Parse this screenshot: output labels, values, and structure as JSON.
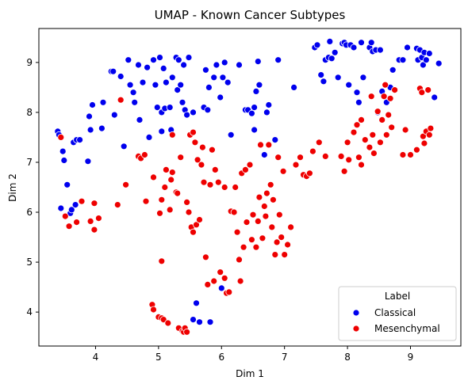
{
  "chart_data": {
    "type": "scatter",
    "title": "UMAP - Known Cancer Subtypes",
    "xlabel": "Dim 1",
    "ylabel": "Dim 2",
    "xlim": [
      3.1,
      9.8
    ],
    "ylim": [
      3.32,
      9.68
    ],
    "xticks": [
      4,
      5,
      6,
      7,
      8,
      9
    ],
    "yticks": [
      4,
      5,
      6,
      7,
      8,
      9
    ],
    "grid": false,
    "legend": {
      "title": "Label",
      "position": "lower-right"
    },
    "series": [
      {
        "name": "Classical",
        "color": "#0000ee",
        "points": [
          [
            3.4,
            7.62
          ],
          [
            3.42,
            7.55
          ],
          [
            3.45,
            6.08
          ],
          [
            3.48,
            7.22
          ],
          [
            3.5,
            7.04
          ],
          [
            3.55,
            6.55
          ],
          [
            3.6,
            5.98
          ],
          [
            3.62,
            6.05
          ],
          [
            3.65,
            7.4
          ],
          [
            3.7,
            7.45
          ],
          [
            3.68,
            6.15
          ],
          [
            3.75,
            7.45
          ],
          [
            3.88,
            7.02
          ],
          [
            3.9,
            7.92
          ],
          [
            3.92,
            7.65
          ],
          [
            3.95,
            8.15
          ],
          [
            4.1,
            7.68
          ],
          [
            4.12,
            8.2
          ],
          [
            4.25,
            8.82
          ],
          [
            4.28,
            8.82
          ],
          [
            4.3,
            7.95
          ],
          [
            4.45,
            7.32
          ],
          [
            4.4,
            8.72
          ],
          [
            4.52,
            9.05
          ],
          [
            4.55,
            8.55
          ],
          [
            4.6,
            8.4
          ],
          [
            4.62,
            8.2
          ],
          [
            4.68,
            8.95
          ],
          [
            4.7,
            7.85
          ],
          [
            4.75,
            8.6
          ],
          [
            4.82,
            8.9
          ],
          [
            4.85,
            7.5
          ],
          [
            4.92,
            9.05
          ],
          [
            4.95,
            8.55
          ],
          [
            4.98,
            8.1
          ],
          [
            5.02,
            9.1
          ],
          [
            5.05,
            8.0
          ],
          [
            5.05,
            7.62
          ],
          [
            5.08,
            8.88
          ],
          [
            5.1,
            8.08
          ],
          [
            5.12,
            8.6
          ],
          [
            5.18,
            8.1
          ],
          [
            5.2,
            7.65
          ],
          [
            5.22,
            8.7
          ],
          [
            5.28,
            9.1
          ],
          [
            5.3,
            8.45
          ],
          [
            5.32,
            9.05
          ],
          [
            5.35,
            8.55
          ],
          [
            5.38,
            8.2
          ],
          [
            5.4,
            8.95
          ],
          [
            5.42,
            8.05
          ],
          [
            5.45,
            7.95
          ],
          [
            5.48,
            9.1
          ],
          [
            5.55,
            8.0
          ],
          [
            5.55,
            3.85
          ],
          [
            5.6,
            4.18
          ],
          [
            5.65,
            3.8
          ],
          [
            5.72,
            8.1
          ],
          [
            5.75,
            8.85
          ],
          [
            5.78,
            8.05
          ],
          [
            5.8,
            8.5
          ],
          [
            5.82,
            3.8
          ],
          [
            5.88,
            8.7
          ],
          [
            5.92,
            8.95
          ],
          [
            5.98,
            8.3
          ],
          [
            6.0,
            4.48
          ],
          [
            6.02,
            8.7
          ],
          [
            6.05,
            9.0
          ],
          [
            6.1,
            8.6
          ],
          [
            6.15,
            7.55
          ],
          [
            6.38,
            8.05
          ],
          [
            6.42,
            8.05
          ],
          [
            6.48,
            7.98
          ],
          [
            6.52,
            8.1
          ],
          [
            6.52,
            7.65
          ],
          [
            6.55,
            8.42
          ],
          [
            6.58,
            9.02
          ],
          [
            6.6,
            8.55
          ],
          [
            6.68,
            7.15
          ],
          [
            6.72,
            8.0
          ],
          [
            6.75,
            8.15
          ],
          [
            6.85,
            7.45
          ],
          [
            6.9,
            9.05
          ],
          [
            7.15,
            8.5
          ],
          [
            7.48,
            9.3
          ],
          [
            7.52,
            9.35
          ],
          [
            7.58,
            8.75
          ],
          [
            7.62,
            8.62
          ],
          [
            7.65,
            9.05
          ],
          [
            7.7,
            9.1
          ],
          [
            7.72,
            9.42
          ],
          [
            7.75,
            9.08
          ],
          [
            7.8,
            9.2
          ],
          [
            7.85,
            8.7
          ],
          [
            7.92,
            9.38
          ],
          [
            7.95,
            9.4
          ],
          [
            7.98,
            9.35
          ],
          [
            8.02,
            8.55
          ],
          [
            8.05,
            9.35
          ],
          [
            8.1,
            9.3
          ],
          [
            8.15,
            8.4
          ],
          [
            8.18,
            8.2
          ],
          [
            8.22,
            9.4
          ],
          [
            8.25,
            8.7
          ],
          [
            8.35,
            9.3
          ],
          [
            8.38,
            9.4
          ],
          [
            8.4,
            9.22
          ],
          [
            8.45,
            9.25
          ],
          [
            8.48,
            8.0
          ],
          [
            8.52,
            9.25
          ],
          [
            8.55,
            8.42
          ],
          [
            8.62,
            8.2
          ],
          [
            8.68,
            8.5
          ],
          [
            8.72,
            8.85
          ],
          [
            8.82,
            9.05
          ],
          [
            8.88,
            9.05
          ],
          [
            8.95,
            9.3
          ],
          [
            9.1,
            9.28
          ],
          [
            9.12,
            9.05
          ],
          [
            9.15,
            9.25
          ],
          [
            9.18,
            9.1
          ],
          [
            9.2,
            8.95
          ],
          [
            9.22,
            9.2
          ],
          [
            9.25,
            9.05
          ],
          [
            9.3,
            9.18
          ],
          [
            9.38,
            8.3
          ],
          [
            9.45,
            8.98
          ],
          [
            6.28,
            8.95
          ]
        ]
      },
      {
        "name": "Mesenchymal",
        "color": "#ee0000",
        "points": [
          [
            3.45,
            7.5
          ],
          [
            3.52,
            5.92
          ],
          [
            3.58,
            5.72
          ],
          [
            3.7,
            5.8
          ],
          [
            3.78,
            6.22
          ],
          [
            3.92,
            5.82
          ],
          [
            3.98,
            5.65
          ],
          [
            3.98,
            6.18
          ],
          [
            4.05,
            5.88
          ],
          [
            4.35,
            6.15
          ],
          [
            4.4,
            8.25
          ],
          [
            4.48,
            6.55
          ],
          [
            4.68,
            7.12
          ],
          [
            4.72,
            7.08
          ],
          [
            4.78,
            7.15
          ],
          [
            4.8,
            6.22
          ],
          [
            4.9,
            4.15
          ],
          [
            4.92,
            4.05
          ],
          [
            4.92,
            6.7
          ],
          [
            5.0,
            3.9
          ],
          [
            5.02,
            5.98
          ],
          [
            5.05,
            5.02
          ],
          [
            5.05,
            6.25
          ],
          [
            5.05,
            3.88
          ],
          [
            5.08,
            3.85
          ],
          [
            5.1,
            6.5
          ],
          [
            5.12,
            6.85
          ],
          [
            5.15,
            3.78
          ],
          [
            5.18,
            6.05
          ],
          [
            5.2,
            6.65
          ],
          [
            5.22,
            6.8
          ],
          [
            5.22,
            7.55
          ],
          [
            5.28,
            6.4
          ],
          [
            5.3,
            6.38
          ],
          [
            5.32,
            3.68
          ],
          [
            5.35,
            7.1
          ],
          [
            5.38,
            3.62
          ],
          [
            5.4,
            3.6
          ],
          [
            5.42,
            3.68
          ],
          [
            5.45,
            3.6
          ],
          [
            5.45,
            6.2
          ],
          [
            5.48,
            6.0
          ],
          [
            5.5,
            7.55
          ],
          [
            5.52,
            5.7
          ],
          [
            5.55,
            7.6
          ],
          [
            5.55,
            5.6
          ],
          [
            5.58,
            7.4
          ],
          [
            5.6,
            5.75
          ],
          [
            5.62,
            7.05
          ],
          [
            5.65,
            5.85
          ],
          [
            5.68,
            6.95
          ],
          [
            5.7,
            7.3
          ],
          [
            5.72,
            6.6
          ],
          [
            5.75,
            5.1
          ],
          [
            5.78,
            4.55
          ],
          [
            5.82,
            6.55
          ],
          [
            5.85,
            7.25
          ],
          [
            5.88,
            4.62
          ],
          [
            5.9,
            6.85
          ],
          [
            5.95,
            6.6
          ],
          [
            5.98,
            4.8
          ],
          [
            6.05,
            4.68
          ],
          [
            6.05,
            6.5
          ],
          [
            6.08,
            4.38
          ],
          [
            6.12,
            4.4
          ],
          [
            6.15,
            6.02
          ],
          [
            6.2,
            6.0
          ],
          [
            6.22,
            6.5
          ],
          [
            6.25,
            5.6
          ],
          [
            6.28,
            5.05
          ],
          [
            6.3,
            4.62
          ],
          [
            6.32,
            6.78
          ],
          [
            6.35,
            5.3
          ],
          [
            6.38,
            6.85
          ],
          [
            6.4,
            5.8
          ],
          [
            6.45,
            6.95
          ],
          [
            6.48,
            5.45
          ],
          [
            6.5,
            5.95
          ],
          [
            6.55,
            5.3
          ],
          [
            6.58,
            5.82
          ],
          [
            6.6,
            6.3
          ],
          [
            6.62,
            7.35
          ],
          [
            6.65,
            5.48
          ],
          [
            6.68,
            6.12
          ],
          [
            6.7,
            5.92
          ],
          [
            6.72,
            6.38
          ],
          [
            6.75,
            7.35
          ],
          [
            6.78,
            6.55
          ],
          [
            6.8,
            5.7
          ],
          [
            6.82,
            6.25
          ],
          [
            6.85,
            5.15
          ],
          [
            6.88,
            5.4
          ],
          [
            6.9,
            7.1
          ],
          [
            6.92,
            5.95
          ],
          [
            6.95,
            5.5
          ],
          [
            6.98,
            6.82
          ],
          [
            7.0,
            5.15
          ],
          [
            7.05,
            5.35
          ],
          [
            7.1,
            5.7
          ],
          [
            7.18,
            6.95
          ],
          [
            7.25,
            7.1
          ],
          [
            7.3,
            6.75
          ],
          [
            7.35,
            6.72
          ],
          [
            7.4,
            6.78
          ],
          [
            7.45,
            7.22
          ],
          [
            7.55,
            7.4
          ],
          [
            7.65,
            7.12
          ],
          [
            7.9,
            7.12
          ],
          [
            7.95,
            6.82
          ],
          [
            8.0,
            7.4
          ],
          [
            8.02,
            7.05
          ],
          [
            8.1,
            7.6
          ],
          [
            8.15,
            7.75
          ],
          [
            8.18,
            7.1
          ],
          [
            8.22,
            7.85
          ],
          [
            8.22,
            6.95
          ],
          [
            8.28,
            7.45
          ],
          [
            8.35,
            7.3
          ],
          [
            8.38,
            8.32
          ],
          [
            8.4,
            7.55
          ],
          [
            8.42,
            7.18
          ],
          [
            8.48,
            8.02
          ],
          [
            8.52,
            7.4
          ],
          [
            8.55,
            7.85
          ],
          [
            8.58,
            8.32
          ],
          [
            8.6,
            8.55
          ],
          [
            8.62,
            7.55
          ],
          [
            8.65,
            7.95
          ],
          [
            8.68,
            8.28
          ],
          [
            8.7,
            7.7
          ],
          [
            8.75,
            8.45
          ],
          [
            8.88,
            7.15
          ],
          [
            8.92,
            7.65
          ],
          [
            9.0,
            7.15
          ],
          [
            9.1,
            7.25
          ],
          [
            9.15,
            8.48
          ],
          [
            9.2,
            7.52
          ],
          [
            9.22,
            7.38
          ],
          [
            9.25,
            7.62
          ],
          [
            9.28,
            8.45
          ],
          [
            9.3,
            7.55
          ],
          [
            9.32,
            7.68
          ],
          [
            9.18,
            8.4
          ]
        ]
      }
    ]
  }
}
